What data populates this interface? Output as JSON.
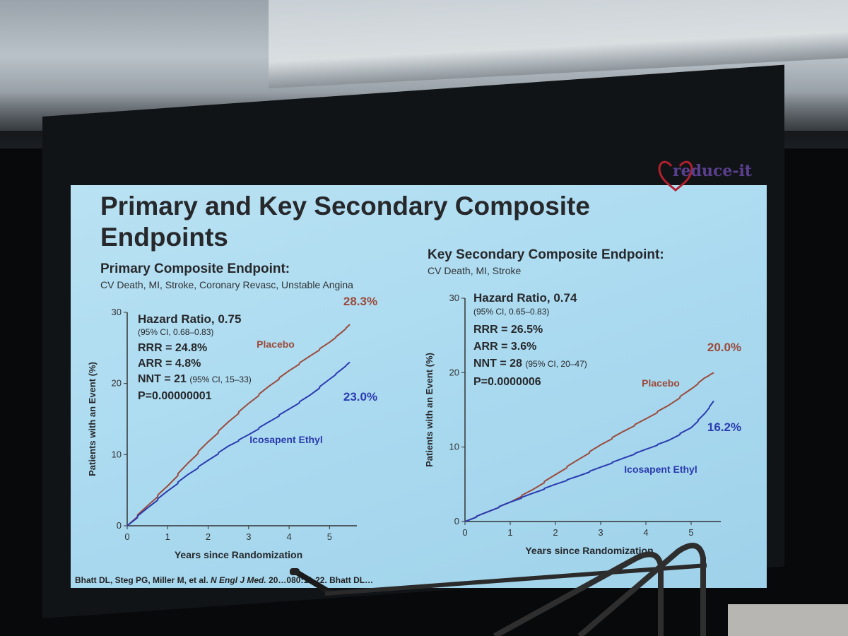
{
  "slide": {
    "title": "Primary and Key Secondary Composite Endpoints",
    "logo": "reduce-it",
    "footer_authors": "Bhatt DL, Steg PG, Miller M, et al.",
    "footer_journal": "N Engl J Med.",
    "footer_citation": "20…080:11-22. Bhatt DL…"
  },
  "left_panel": {
    "title": "Primary Composite Endpoint:",
    "subtitle": "CV Death, MI, Stroke, Coronary Revasc, Unstable Angina",
    "hazard_ratio": "Hazard Ratio, 0.75",
    "ci": "(95% CI, 0.68–0.83)",
    "rrr": "RRR = 24.8%",
    "arr": "ARR = 4.8%",
    "nnt": "NNT = 21",
    "nnt_ci": "(95% CI, 15–33)",
    "p": "P=0.00000001",
    "placebo_label": "Placebo",
    "placebo_end": "28.3%",
    "treat_label": "Icosapent Ethyl",
    "treat_end": "23.0%"
  },
  "right_panel": {
    "title": "Key Secondary Composite Endpoint:",
    "subtitle": "CV Death, MI, Stroke",
    "hazard_ratio": "Hazard Ratio, 0.74",
    "ci": "(95% CI, 0.65–0.83)",
    "rrr": "RRR = 26.5%",
    "arr": "ARR = 3.6%",
    "nnt": "NNT = 28",
    "nnt_ci": "(95% CI, 20–47)",
    "p": "P=0.0000006",
    "placebo_label": "Placebo",
    "placebo_end": "20.0%",
    "treat_label": "Icosapent Ethyl",
    "treat_end": "16.2%"
  },
  "colors": {
    "placebo": "#9b4a3c",
    "treatment": "#2b3bb0",
    "axis": "#333333"
  },
  "chart_data": [
    {
      "type": "line",
      "title": "Primary Composite Endpoint:",
      "xlabel": "Years since Randomization",
      "ylabel": "Patients with an Event (%)",
      "xlim": [
        0,
        5.5
      ],
      "ylim": [
        0,
        30
      ],
      "xticks": [
        0,
        1,
        2,
        3,
        4,
        5
      ],
      "yticks": [
        0,
        10,
        20,
        30
      ],
      "series": [
        {
          "name": "Placebo",
          "color": "#9b4a3c",
          "x": [
            0,
            0.5,
            1,
            1.5,
            2,
            2.5,
            3,
            3.5,
            4,
            4.5,
            5,
            5.3,
            5.5
          ],
          "y": [
            0,
            2.8,
            5.6,
            8.8,
            11.8,
            14.6,
            17.2,
            19.6,
            21.8,
            23.8,
            25.8,
            27.2,
            28.3
          ]
        },
        {
          "name": "Icosapent Ethyl",
          "color": "#2b3bb0",
          "x": [
            0,
            0.5,
            1,
            1.5,
            2,
            2.5,
            3,
            3.5,
            4,
            4.5,
            5,
            5.3,
            5.5
          ],
          "y": [
            0,
            2.5,
            4.9,
            7.2,
            9.2,
            11.2,
            12.8,
            14.6,
            16.4,
            18.3,
            20.6,
            22.0,
            23.0
          ]
        }
      ]
    },
    {
      "type": "line",
      "title": "Key Secondary Composite Endpoint:",
      "xlabel": "Years since Randomization",
      "ylabel": "Patients with an Event (%)",
      "xlim": [
        0,
        5.5
      ],
      "ylim": [
        0,
        30
      ],
      "xticks": [
        0,
        1,
        2,
        3,
        4,
        5
      ],
      "yticks": [
        0,
        10,
        20,
        30
      ],
      "series": [
        {
          "name": "Placebo",
          "color": "#9b4a3c",
          "x": [
            0,
            0.5,
            1,
            1.5,
            2,
            2.5,
            3,
            3.5,
            4,
            4.5,
            5,
            5.3,
            5.5
          ],
          "y": [
            0,
            1.3,
            2.6,
            4.3,
            6.3,
            8.3,
            10.3,
            12.1,
            13.8,
            15.6,
            17.8,
            19.3,
            20.0
          ]
        },
        {
          "name": "Icosapent Ethyl",
          "color": "#2b3bb0",
          "x": [
            0,
            0.5,
            1,
            1.5,
            2,
            2.5,
            3,
            3.5,
            4,
            4.5,
            5,
            5.3,
            5.5
          ],
          "y": [
            0,
            1.3,
            2.6,
            3.8,
            5.0,
            6.1,
            7.3,
            8.5,
            9.7,
            10.9,
            12.6,
            14.5,
            16.2
          ]
        }
      ]
    }
  ]
}
